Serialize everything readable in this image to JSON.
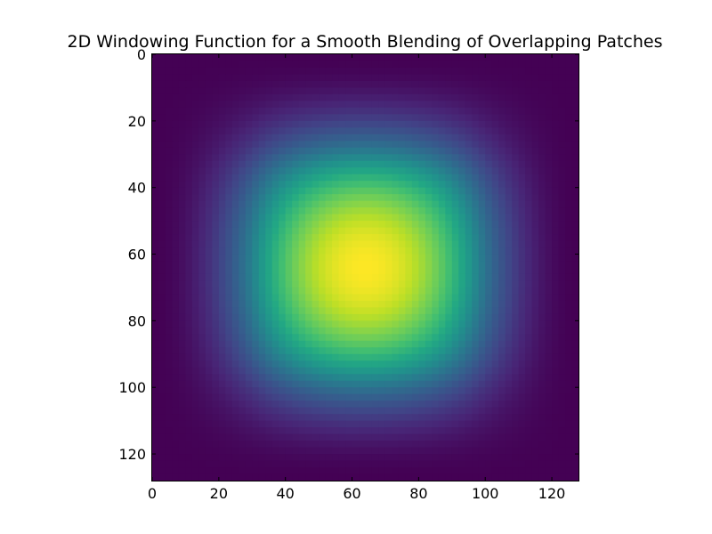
{
  "chart_data": {
    "type": "heatmap",
    "title": "2D Windowing Function for a Smooth Blending of Overlapping Patches",
    "xlabel": "",
    "ylabel": "",
    "xlim": [
      0,
      128
    ],
    "ylim": [
      128,
      0
    ],
    "y_inverted": true,
    "grid": false,
    "colormap": "viridis",
    "value_range": [
      0,
      1
    ],
    "peak": {
      "x": 64,
      "y": 64,
      "value": 1.0
    },
    "function": "separable spline window, peak at center, decaying to 0 at edges",
    "x_ticks": [
      "0",
      "20",
      "40",
      "60",
      "80",
      "100",
      "120"
    ],
    "y_ticks": [
      "0",
      "20",
      "40",
      "60",
      "80",
      "100",
      "120"
    ],
    "x_tick_values": [
      0,
      20,
      40,
      60,
      80,
      100,
      120
    ],
    "y_tick_values": [
      0,
      20,
      40,
      60,
      80,
      100,
      120
    ]
  }
}
